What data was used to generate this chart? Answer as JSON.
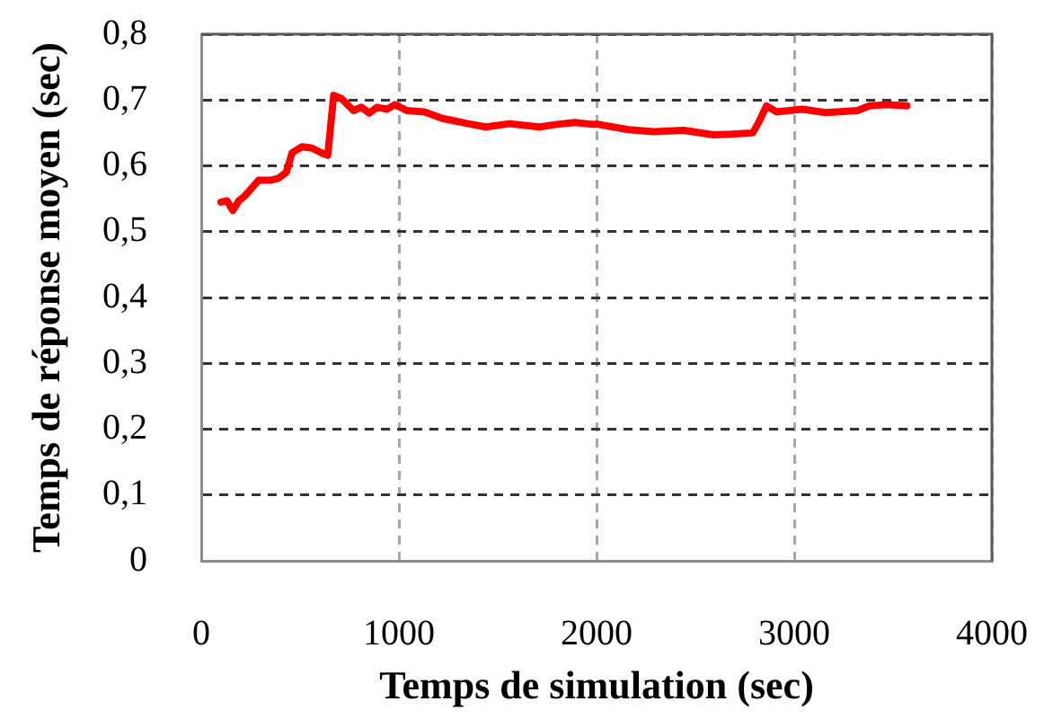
{
  "chart_data": {
    "type": "line",
    "xlabel": "Temps de simulation (sec)",
    "ylabel": "Temps de réponse moyen (sec)",
    "x": [
      100,
      130,
      160,
      190,
      220,
      290,
      350,
      390,
      430,
      460,
      510,
      560,
      620,
      640,
      670,
      710,
      770,
      810,
      850,
      890,
      940,
      980,
      1040,
      1130,
      1220,
      1350,
      1440,
      1560,
      1710,
      1800,
      1890,
      1980,
      2010,
      2160,
      2290,
      2440,
      2590,
      2680,
      2790,
      2820,
      2860,
      2910,
      3040,
      3160,
      3320,
      3380,
      3470,
      3570
    ],
    "series": [
      {
        "color": "#ff0000",
        "values": [
          0.545,
          0.547,
          0.532,
          0.547,
          0.554,
          0.578,
          0.578,
          0.581,
          0.59,
          0.62,
          0.629,
          0.627,
          0.618,
          0.616,
          0.707,
          0.702,
          0.684,
          0.689,
          0.68,
          0.689,
          0.686,
          0.693,
          0.684,
          0.682,
          0.672,
          0.664,
          0.659,
          0.664,
          0.659,
          0.663,
          0.666,
          0.663,
          0.663,
          0.655,
          0.652,
          0.654,
          0.647,
          0.648,
          0.65,
          0.666,
          0.691,
          0.682,
          0.686,
          0.681,
          0.684,
          0.691,
          0.693,
          0.691
        ]
      }
    ],
    "xlim": [
      0,
      4000
    ],
    "xticks": [
      0,
      1000,
      2000,
      3000,
      4000
    ],
    "ylim": [
      0,
      0.8
    ],
    "yticks": [
      0,
      {
        "value": 0.1,
        "label": "0,1"
      },
      {
        "value": 0.2,
        "label": "0,2"
      },
      {
        "value": 0.3,
        "label": "0,3"
      },
      {
        "value": 0.4,
        "label": "0,4"
      },
      {
        "value": 0.5,
        "label": "0,5"
      },
      {
        "value": 0.6,
        "label": "0,6"
      },
      {
        "value": 0.7,
        "label": "0,7"
      },
      {
        "value": 0.8,
        "label": "0,8"
      }
    ],
    "grid": true,
    "marker": "none",
    "line_style": "solid"
  }
}
